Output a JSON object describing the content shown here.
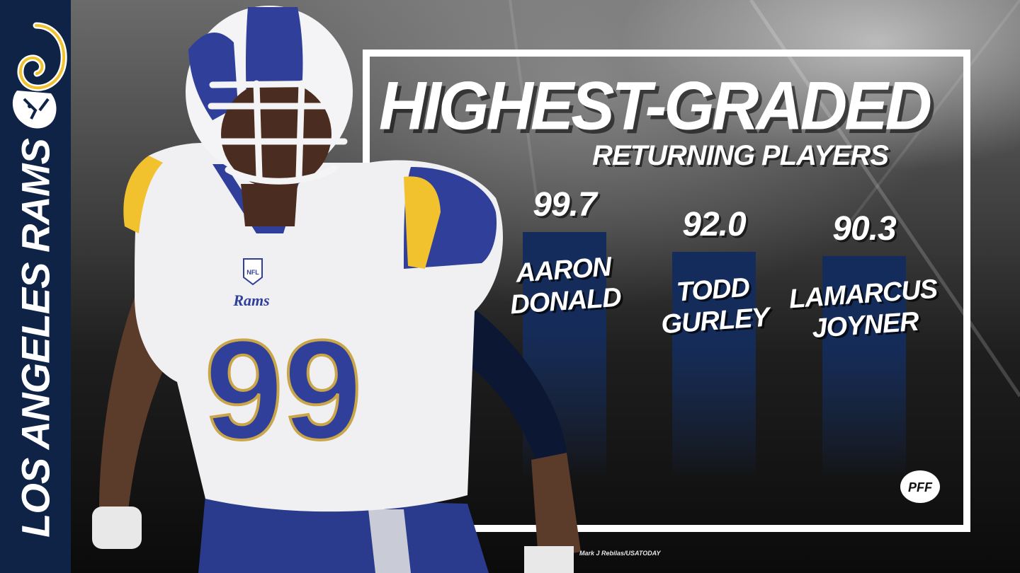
{
  "team": {
    "name": "LOS ANGELES RAMS"
  },
  "colors": {
    "navy": "#0f2347",
    "bar": "#142c5c",
    "gold": "#f2c22e",
    "white": "#ffffff"
  },
  "chart_data": {
    "type": "bar",
    "title": "HIGHEST-GRADED",
    "subtitle": "RETURNING PLAYERS",
    "categories": [
      [
        "AARON",
        "DONALD"
      ],
      [
        "TODD",
        "GURLEY"
      ],
      [
        "LAMARCUS",
        "JOYNER"
      ]
    ],
    "values": [
      99.7,
      92.0,
      90.3
    ],
    "value_labels": [
      "99.7",
      "92.0",
      "90.3"
    ],
    "xlabel": "",
    "ylabel": "",
    "grid": false,
    "legend": "none"
  },
  "player": {
    "jersey_number": "99",
    "chest_text": "Rams",
    "patch": "NFL"
  },
  "logo": {
    "brand": "PFF",
    "icon": "pff-football-icon"
  },
  "credit": "Mark J Rebilas/USATODAY"
}
